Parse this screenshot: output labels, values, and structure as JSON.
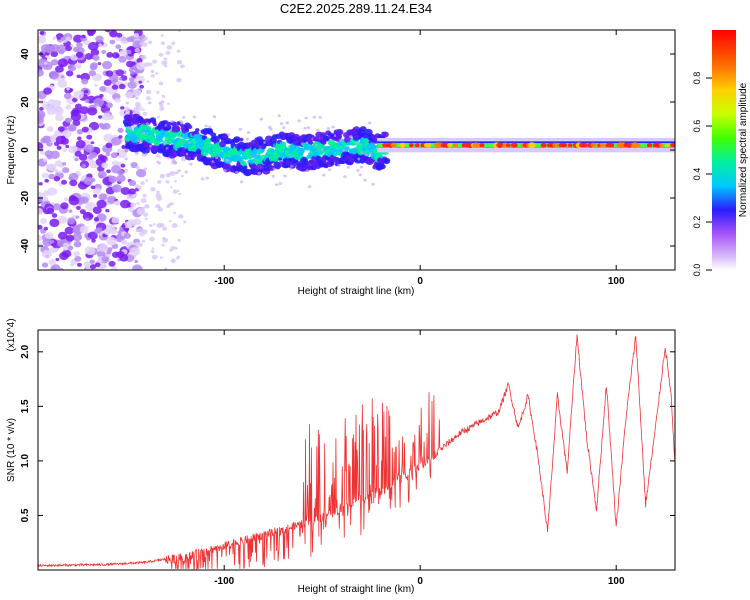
{
  "title": "C2E2.2025.289.11.24.E34",
  "colors": {
    "snr_line": "#ee3333",
    "spec_low": "#a855f7",
    "spec_high": "#ff0000",
    "axis": "#000000"
  },
  "chart_data": [
    {
      "type": "heatmap",
      "name": "spectrogram",
      "xlabel": "Height of straight line (km)",
      "ylabel": "Frequency (Hz)",
      "xlim": [
        -195,
        130
      ],
      "ylim": [
        -50,
        50
      ],
      "xticks": [
        -100,
        0,
        100
      ],
      "yticks": [
        -40,
        -20,
        0,
        20,
        40
      ],
      "xtick_labels": [
        "-100",
        "0",
        "100"
      ],
      "ytick_labels": [
        "-40",
        "-20",
        "0",
        "20",
        "40"
      ],
      "colorbar": {
        "label": "Normalized spectral amplitude",
        "range": [
          0.0,
          1.0
        ],
        "ticks": [
          0.0,
          0.2,
          0.4,
          0.6,
          0.8
        ],
        "tick_labels": [
          "0.0",
          "0.2",
          "0.4",
          "0.6",
          "0.8"
        ]
      },
      "ridge": {
        "x": [
          -145,
          -130,
          -115,
          -100,
          -90,
          -80,
          -70,
          -60,
          -50,
          -40,
          -30,
          -22,
          -15,
          -10,
          -5,
          0,
          10,
          20,
          40,
          60,
          80,
          100,
          120,
          130
        ],
        "y": [
          7,
          5,
          3,
          -1,
          -3,
          -2,
          0,
          -1,
          0,
          1,
          2,
          -1,
          1,
          2,
          2,
          2,
          2,
          2,
          2,
          2,
          2,
          2,
          2,
          2
        ]
      },
      "noise_extent_x": [
        -195,
        -145
      ]
    },
    {
      "type": "line",
      "name": "snr",
      "xlabel": "Height of straight line (km)",
      "ylabel": "SNR (10 * v/v)",
      "y_multiplier": "(x10^4)",
      "xlim": [
        -195,
        130
      ],
      "ylim": [
        0,
        2.2
      ],
      "xticks": [
        -100,
        0,
        100
      ],
      "yticks": [
        0.5,
        1.0,
        1.5,
        2.0
      ],
      "xtick_labels": [
        "-100",
        "0",
        "100"
      ],
      "ytick_labels": [
        "0.5",
        "1.0",
        "1.5",
        "2.0"
      ],
      "envelope": {
        "x": [
          -195,
          -160,
          -140,
          -120,
          -100,
          -80,
          -60,
          -40,
          -30,
          -20,
          -10,
          0,
          10,
          20,
          30,
          40,
          45,
          50,
          55,
          60,
          65,
          70,
          75,
          80,
          85,
          90,
          95,
          100,
          105,
          110,
          115,
          120,
          125,
          128,
          130
        ],
        "y": [
          0.03,
          0.04,
          0.06,
          0.12,
          0.22,
          0.32,
          0.42,
          0.55,
          0.65,
          0.72,
          0.85,
          0.95,
          1.1,
          1.25,
          1.35,
          1.45,
          1.7,
          1.3,
          1.6,
          1.05,
          0.35,
          1.6,
          0.9,
          2.15,
          1.2,
          0.55,
          1.7,
          0.4,
          1.4,
          2.15,
          0.6,
          1.3,
          2.05,
          1.6,
          0.95
        ]
      },
      "spike_range_x": [
        -60,
        10
      ],
      "spike_max": 1.7
    }
  ]
}
